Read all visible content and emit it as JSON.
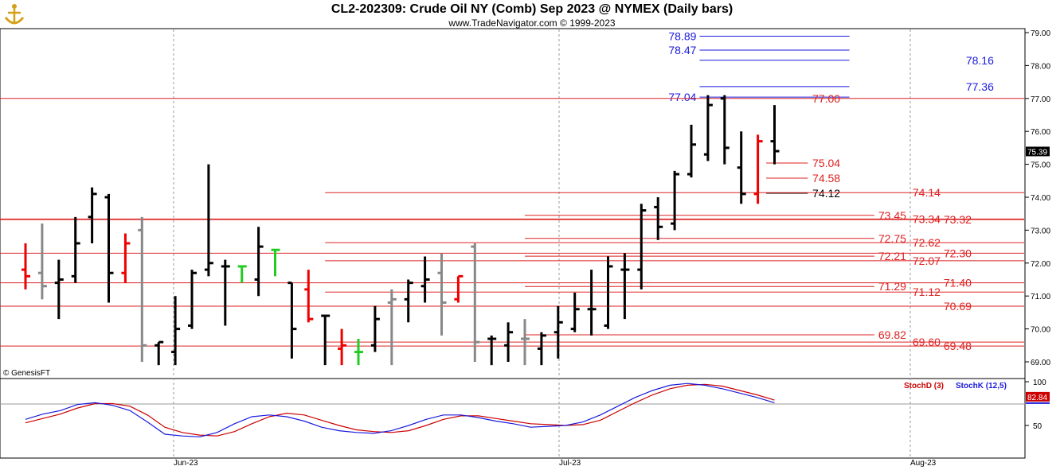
{
  "header": {
    "title": "CL2-202309:  Crude Oil NY (Comb) Sep 2023 @ NYMEX  (Daily bars)",
    "subtitle": "www.TradeNavigator.com © 1999-2023",
    "watermark": "© GenesisFT"
  },
  "colors": {
    "up": "#000000",
    "down": "#000000",
    "gray": "#888888",
    "red": "#ee0000",
    "green": "#22cc22",
    "support": "#dd2222",
    "resistance": "#1a1adc",
    "stochD": "#cc0000",
    "stochK": "#1a1adc"
  },
  "chart_data": [
    {
      "type": "ohlc",
      "title": "CL2-202309:  Crude Oil NY (Comb) Sep 2023 @ NYMEX  (Daily bars)",
      "ylim": [
        68.85,
        79.2
      ],
      "y_ticks": [
        "79.00",
        "78.00",
        "77.00",
        "76.00",
        "75.00",
        "74.00",
        "73.00",
        "72.00",
        "71.00",
        "70.00",
        "69.00"
      ],
      "x_ticks": [
        "Jun-23",
        "Jul-23",
        "Aug-23"
      ],
      "last_price": "75.39",
      "bars": [
        {
          "o": 71.8,
          "h": 72.6,
          "l": 71.2,
          "c": 71.6,
          "color": "red"
        },
        {
          "o": 71.7,
          "h": 73.2,
          "l": 70.9,
          "c": 71.3,
          "color": "gray"
        },
        {
          "o": 71.4,
          "h": 72.1,
          "l": 70.3,
          "c": 71.5,
          "color": "black"
        },
        {
          "o": 71.6,
          "h": 73.4,
          "l": 71.4,
          "c": 72.6,
          "color": "black"
        },
        {
          "o": 73.4,
          "h": 74.3,
          "l": 72.6,
          "c": 74.1,
          "color": "black"
        },
        {
          "o": 74.0,
          "h": 74.1,
          "l": 70.8,
          "c": 71.7,
          "color": "black"
        },
        {
          "o": 71.7,
          "h": 72.9,
          "l": 71.4,
          "c": 72.6,
          "color": "red"
        },
        {
          "o": 73.0,
          "h": 73.4,
          "l": 69.0,
          "c": 69.5,
          "color": "gray"
        },
        {
          "o": 69.5,
          "h": 69.6,
          "l": 68.9,
          "c": 69.6,
          "color": "black"
        },
        {
          "o": 69.3,
          "h": 71.0,
          "l": 68.9,
          "c": 70.0,
          "color": "black"
        },
        {
          "o": 70.1,
          "h": 71.8,
          "l": 70.0,
          "c": 71.7,
          "color": "black"
        },
        {
          "o": 71.8,
          "h": 75.0,
          "l": 71.6,
          "c": 72.0,
          "color": "black"
        },
        {
          "o": 71.9,
          "h": 72.1,
          "l": 70.1,
          "c": 71.9,
          "color": "black"
        },
        {
          "o": 71.9,
          "h": 71.9,
          "l": 71.4,
          "c": 71.9,
          "color": "green"
        },
        {
          "o": 71.5,
          "h": 73.1,
          "l": 71.0,
          "c": 72.5,
          "color": "black"
        },
        {
          "o": 72.4,
          "h": 72.4,
          "l": 71.6,
          "c": 72.4,
          "color": "green"
        },
        {
          "o": 71.4,
          "h": 71.4,
          "l": 69.1,
          "c": 70.0,
          "color": "black"
        },
        {
          "o": 71.2,
          "h": 71.8,
          "l": 70.2,
          "c": 70.3,
          "color": "red"
        },
        {
          "o": 70.4,
          "h": 70.4,
          "l": 68.9,
          "c": 70.4,
          "color": "black"
        },
        {
          "o": 69.4,
          "h": 70.0,
          "l": 68.9,
          "c": 69.5,
          "color": "red"
        },
        {
          "o": 69.3,
          "h": 69.7,
          "l": 68.9,
          "c": 69.3,
          "color": "green"
        },
        {
          "o": 69.5,
          "h": 70.7,
          "l": 69.3,
          "c": 70.3,
          "color": "black"
        },
        {
          "o": 70.8,
          "h": 71.2,
          "l": 68.9,
          "c": 70.9,
          "color": "gray"
        },
        {
          "o": 70.9,
          "h": 71.5,
          "l": 70.2,
          "c": 71.4,
          "color": "black"
        },
        {
          "o": 71.3,
          "h": 72.2,
          "l": 70.8,
          "c": 71.5,
          "color": "black"
        },
        {
          "o": 71.7,
          "h": 72.3,
          "l": 69.8,
          "c": 70.8,
          "color": "gray"
        },
        {
          "o": 70.9,
          "h": 71.6,
          "l": 70.8,
          "c": 71.6,
          "color": "red"
        },
        {
          "o": 72.5,
          "h": 72.6,
          "l": 69.0,
          "c": 69.6,
          "color": "gray"
        },
        {
          "o": 69.7,
          "h": 69.8,
          "l": 68.9,
          "c": 69.7,
          "color": "black"
        },
        {
          "o": 69.5,
          "h": 70.2,
          "l": 69.0,
          "c": 69.9,
          "color": "black"
        },
        {
          "o": 69.7,
          "h": 70.3,
          "l": 68.9,
          "c": 69.7,
          "color": "gray"
        },
        {
          "o": 69.4,
          "h": 69.9,
          "l": 68.9,
          "c": 69.8,
          "color": "black"
        },
        {
          "o": 69.9,
          "h": 70.7,
          "l": 69.1,
          "c": 70.2,
          "color": "black"
        },
        {
          "o": 70.0,
          "h": 71.1,
          "l": 69.9,
          "c": 70.6,
          "color": "black"
        },
        {
          "o": 70.6,
          "h": 71.8,
          "l": 69.8,
          "c": 70.6,
          "color": "black"
        },
        {
          "o": 70.1,
          "h": 72.2,
          "l": 70.0,
          "c": 71.9,
          "color": "black"
        },
        {
          "o": 71.8,
          "h": 72.3,
          "l": 70.3,
          "c": 71.8,
          "color": "black"
        },
        {
          "o": 71.8,
          "h": 73.8,
          "l": 71.2,
          "c": 73.6,
          "color": "black"
        },
        {
          "o": 73.7,
          "h": 74.0,
          "l": 72.7,
          "c": 73.1,
          "color": "black"
        },
        {
          "o": 73.2,
          "h": 74.8,
          "l": 73.0,
          "c": 74.7,
          "color": "black"
        },
        {
          "o": 74.7,
          "h": 76.2,
          "l": 74.6,
          "c": 75.6,
          "color": "black"
        },
        {
          "o": 75.3,
          "h": 77.1,
          "l": 75.1,
          "c": 76.8,
          "color": "black"
        },
        {
          "o": 77.0,
          "h": 77.1,
          "l": 75.0,
          "c": 75.5,
          "color": "black"
        },
        {
          "o": 74.9,
          "h": 76.0,
          "l": 73.8,
          "c": 74.1,
          "color": "black"
        },
        {
          "o": 74.1,
          "h": 75.9,
          "l": 73.8,
          "c": 75.7,
          "color": "red"
        },
        {
          "o": 75.7,
          "h": 76.8,
          "l": 75.0,
          "c": 75.4,
          "color": "black"
        }
      ],
      "levels": [
        {
          "label": "78.89",
          "value": 78.89,
          "color": "resistance",
          "label_side": "left",
          "x_start_bar": 40.5,
          "x_end_bar": 49.5
        },
        {
          "label": "78.47",
          "value": 78.47,
          "color": "resistance",
          "label_side": "left",
          "x_start_bar": 40.5,
          "x_end_bar": 49.5
        },
        {
          "label": "78.16",
          "value": 78.16,
          "color": "resistance",
          "label_side": "right",
          "x_start_bar": 40.5,
          "x_end_bar": 49.5
        },
        {
          "label": "77.36",
          "value": 77.36,
          "color": "resistance",
          "label_side": "right",
          "x_start_bar": 40.5,
          "x_end_bar": 49.5
        },
        {
          "label": "77.04",
          "value": 77.04,
          "color": "resistance",
          "label_side": "left",
          "x_start_bar": 40.5,
          "x_end_bar": 49.5
        },
        {
          "label": "77.00",
          "value": 77.0,
          "color": "support",
          "label_side": "rightmid",
          "x_start_bar": -1,
          "x_end_bar": 60
        },
        {
          "label": "75.04",
          "value": 75.04,
          "color": "support",
          "label_side": "rightmid",
          "x_start_bar": 44.5,
          "x_end_bar": 47
        },
        {
          "label": "74.58",
          "value": 74.58,
          "color": "support",
          "label_side": "rightmid",
          "x_start_bar": 44.5,
          "x_end_bar": 47
        },
        {
          "label": "74.12",
          "value": 74.12,
          "color": "black",
          "label_side": "rightmid",
          "x_start_bar": 44.5,
          "x_end_bar": 47
        },
        {
          "label": "74.14",
          "value": 74.14,
          "color": "support",
          "label_side": "far",
          "x_start_bar": 18,
          "x_end_bar": 60
        },
        {
          "label": "73.45",
          "value": 73.45,
          "color": "support",
          "label_side": "mid",
          "x_start_bar": 30,
          "x_end_bar": 51
        },
        {
          "label": "73.34",
          "value": 73.34,
          "color": "support",
          "label_side": "far",
          "x_start_bar": -1,
          "x_end_bar": 60
        },
        {
          "label": "73.32",
          "value": 73.32,
          "color": "support",
          "label_side": "end",
          "x_start_bar": -1,
          "x_end_bar": 60
        },
        {
          "label": "72.75",
          "value": 72.75,
          "color": "support",
          "label_side": "mid",
          "x_start_bar": 30,
          "x_end_bar": 51
        },
        {
          "label": "72.62",
          "value": 72.62,
          "color": "support",
          "label_side": "far",
          "x_start_bar": 18,
          "x_end_bar": 60
        },
        {
          "label": "72.30",
          "value": 72.3,
          "color": "support",
          "label_side": "end",
          "x_start_bar": -1,
          "x_end_bar": 60
        },
        {
          "label": "72.21",
          "value": 72.21,
          "color": "support",
          "label_side": "mid",
          "x_start_bar": 30,
          "x_end_bar": 51
        },
        {
          "label": "72.07",
          "value": 72.07,
          "color": "support",
          "label_side": "far",
          "x_start_bar": 18,
          "x_end_bar": 60
        },
        {
          "label": "71.40",
          "value": 71.4,
          "color": "support",
          "label_side": "end",
          "x_start_bar": -1,
          "x_end_bar": 60
        },
        {
          "label": "71.29",
          "value": 71.29,
          "color": "support",
          "label_side": "mid",
          "x_start_bar": 30,
          "x_end_bar": 51
        },
        {
          "label": "71.12",
          "value": 71.12,
          "color": "support",
          "label_side": "far",
          "x_start_bar": 18,
          "x_end_bar": 60
        },
        {
          "label": "70.69",
          "value": 70.69,
          "color": "support",
          "label_side": "end",
          "x_start_bar": -1,
          "x_end_bar": 60
        },
        {
          "label": "69.82",
          "value": 69.82,
          "color": "support",
          "label_side": "mid",
          "x_start_bar": 30,
          "x_end_bar": 51
        },
        {
          "label": "69.60",
          "value": 69.6,
          "color": "support",
          "label_side": "far",
          "x_start_bar": 18,
          "x_end_bar": 60
        },
        {
          "label": "69.48",
          "value": 69.48,
          "color": "support",
          "label_side": "end",
          "x_start_bar": -1,
          "x_end_bar": 60
        }
      ]
    },
    {
      "type": "line",
      "title": "",
      "ylim": [
        10,
        100
      ],
      "y_ticks": [
        "100",
        "50"
      ],
      "legend": [
        "StochD (3)",
        "StochK (12,5)"
      ],
      "last_value": "82.84",
      "series": [
        {
          "name": "StochD (3)",
          "color": "stochD",
          "values": [
            53,
            58,
            63,
            70,
            75,
            75,
            72,
            62,
            48,
            42,
            39,
            38,
            43,
            52,
            60,
            64,
            62,
            56,
            50,
            45,
            43,
            42,
            44,
            50,
            57,
            61,
            61,
            58,
            55,
            52,
            51,
            50,
            51,
            56,
            66,
            76,
            85,
            92,
            96,
            97,
            95,
            90,
            85,
            79
          ]
        },
        {
          "name": "StochK (12,5)",
          "color": "stochK",
          "values": [
            57,
            63,
            67,
            74,
            76,
            73,
            67,
            54,
            40,
            38,
            37,
            42,
            52,
            60,
            62,
            60,
            55,
            48,
            44,
            42,
            41,
            44,
            50,
            57,
            62,
            62,
            59,
            55,
            52,
            48,
            49,
            50,
            54,
            62,
            72,
            82,
            90,
            96,
            98,
            96,
            92,
            87,
            82,
            76
          ]
        }
      ]
    }
  ]
}
